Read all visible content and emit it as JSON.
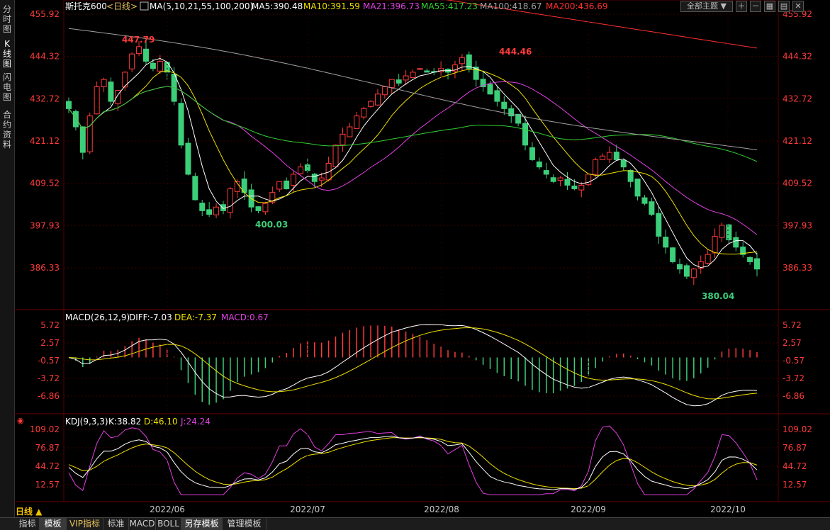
{
  "sidebar": {
    "tabs": [
      {
        "label": "分时图",
        "chars": [
          "分",
          "时",
          "图"
        ]
      },
      {
        "label": "K线图",
        "chars": [
          "K",
          "线",
          "图"
        ]
      },
      {
        "label": "闪电图",
        "chars": [
          "闪",
          "电",
          "图"
        ]
      },
      {
        "label": "合约资料",
        "chars": [
          "合",
          "约",
          "资",
          "料"
        ]
      }
    ]
  },
  "header": {
    "symbol": "斯托克600",
    "period": "<日线>",
    "ma_label": "MA(5,10,21,55,100,200)",
    "ma_values": [
      {
        "text": "MA5:390.48",
        "color": "#ffffff"
      },
      {
        "text": "MA10:391.59",
        "color": "#f0e000"
      },
      {
        "text": "MA21:396.73",
        "color": "#e040e0"
      },
      {
        "text": "MA55:417.23",
        "color": "#30d030"
      },
      {
        "text": "MA100:418.67",
        "color": "#a0a0a0"
      },
      {
        "text": "MA200:436.69",
        "color": "#ff3030"
      }
    ],
    "theme_select": "全部主题"
  },
  "colors": {
    "up": "#ff3a3a",
    "down": "#3ccf7a",
    "axis": "#ff3a3a",
    "grid": "#3a0000"
  },
  "price_panel": {
    "y_ticks": [
      "455.92",
      "444.32",
      "432.72",
      "421.12",
      "409.52",
      "397.93",
      "386.33"
    ],
    "high_label": "447.79",
    "mid_high_label": "444.46",
    "low_label_1": "400.03",
    "low_label_2": "380.04"
  },
  "macd_panel": {
    "label": "MACD(26,12,9)",
    "diff": "DIFF:-7.03",
    "dea": "DEA:-7.37",
    "macd": "MACD:0.67",
    "y_ticks": [
      "5.72",
      "2.57",
      "-0.57",
      "-3.72",
      "-6.86"
    ]
  },
  "kdj_panel": {
    "label": "KDJ(9,3,3)",
    "k": "K:38.82",
    "d": "D:46.10",
    "j": "J:24.24",
    "y_ticks": [
      "109.02",
      "76.87",
      "44.72",
      "12.57"
    ]
  },
  "x_axis": {
    "labels": [
      "2022/06",
      "2022/07",
      "2022/08",
      "2022/09",
      "2022/10"
    ]
  },
  "bottom": {
    "period_button": "日线 ▲",
    "tabs": [
      "指标",
      "模板",
      "VIP指标",
      "标准",
      "MACD",
      "BOLL",
      "另存模板",
      "管理模板"
    ]
  },
  "chart_data": [
    {
      "type": "candlestick",
      "title": "斯托克600 <日线>",
      "ylim": [
        380.04,
        455.92
      ],
      "x_labels": [
        "2022/06",
        "2022/07",
        "2022/08",
        "2022/09",
        "2022/10"
      ],
      "close_series": [
        430,
        425,
        418,
        428,
        436,
        438,
        432,
        435,
        440,
        445,
        447,
        443,
        441,
        443,
        440,
        432,
        420,
        412,
        405,
        402,
        401,
        403,
        402,
        408,
        410,
        407,
        403,
        402,
        404,
        407,
        410,
        408,
        412,
        414,
        413,
        410,
        411,
        415,
        420,
        423,
        425,
        428,
        430,
        432,
        434,
        436,
        438,
        437,
        439,
        440,
        441,
        440,
        440,
        441,
        440,
        442,
        444,
        441,
        438,
        436,
        434,
        432,
        430,
        428,
        426,
        420,
        416,
        414,
        412,
        410,
        411,
        409,
        408,
        409,
        412,
        416,
        417,
        418,
        416,
        414,
        410,
        406,
        404,
        401,
        395,
        392,
        388,
        386,
        384,
        386,
        388,
        390,
        395,
        398,
        394,
        392,
        390,
        388,
        386
      ]
    },
    {
      "type": "line",
      "title": "MACD(26,12,9)",
      "ylim": [
        -8.5,
        6.5
      ],
      "series": [
        {
          "name": "DIFF",
          "latest": -7.03
        },
        {
          "name": "DEA",
          "latest": -7.37
        },
        {
          "name": "MACD",
          "latest": 0.67
        }
      ]
    },
    {
      "type": "line",
      "title": "KDJ(9,3,3)",
      "ylim": [
        0,
        115
      ],
      "series": [
        {
          "name": "K",
          "latest": 38.82
        },
        {
          "name": "D",
          "latest": 46.1
        },
        {
          "name": "J",
          "latest": 24.24
        }
      ]
    }
  ]
}
